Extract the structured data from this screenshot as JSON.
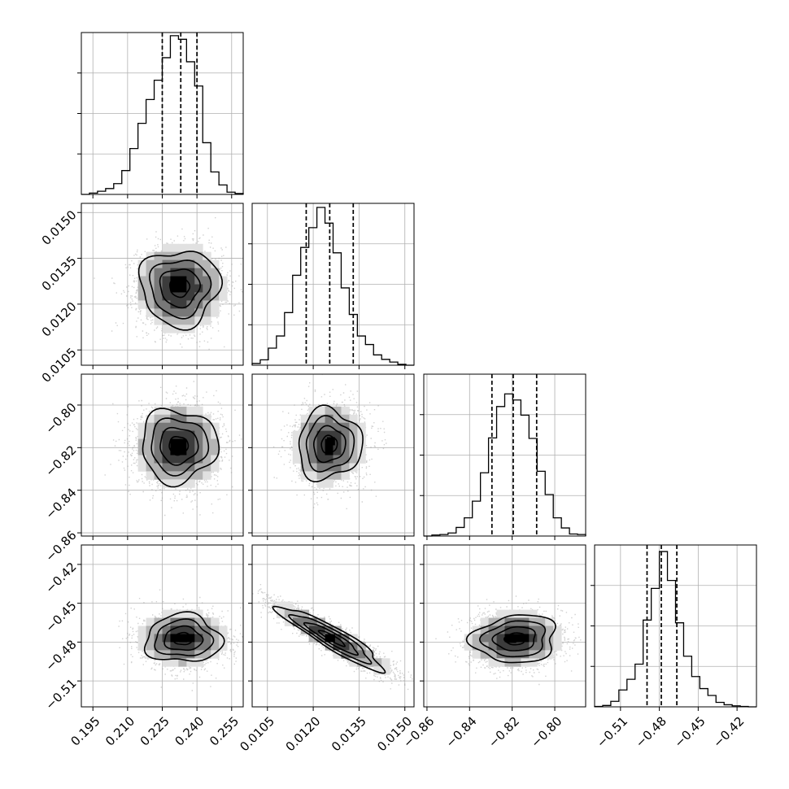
{
  "chart_data": {
    "type": "corner",
    "title": "",
    "grid": true,
    "parameters": [
      {
        "range": [
          0.19,
          0.26
        ],
        "ticks": [
          0.195,
          0.21,
          0.225,
          0.24,
          0.255
        ],
        "tick_labels": [
          "0.195",
          "0.210",
          "0.225",
          "0.240",
          "0.255"
        ],
        "quantiles": [
          0.225,
          0.233,
          0.24
        ],
        "hist_max": 0.036,
        "hist_edges": [
          0.19,
          0.1935,
          0.197,
          0.2005,
          0.204,
          0.2075,
          0.211,
          0.2145,
          0.218,
          0.2215,
          0.225,
          0.2285,
          0.232,
          0.2355,
          0.239,
          0.2425,
          0.246,
          0.2495,
          0.253,
          0.2565,
          0.26
        ],
        "hist_counts": [
          0.0,
          0.0003,
          0.0007,
          0.0013,
          0.0024,
          0.0053,
          0.0102,
          0.0158,
          0.0211,
          0.0254,
          0.0304,
          0.0353,
          0.0345,
          0.0295,
          0.0241,
          0.0115,
          0.005,
          0.0021,
          0.0005,
          0.0002
        ]
      },
      {
        "range": [
          0.01,
          0.0153
        ],
        "ticks": [
          0.0105,
          0.012,
          0.0135,
          0.015
        ],
        "tick_labels": [
          "0.0105",
          "0.0120",
          "0.0135",
          "0.0150"
        ],
        "quantiles": [
          0.01177,
          0.01254,
          0.01331
        ],
        "hist_max": 0.036,
        "hist_edges": [
          0.01,
          0.010265,
          0.01053,
          0.010795,
          0.01106,
          0.011325,
          0.01159,
          0.011855,
          0.01212,
          0.012385,
          0.01265,
          0.012915,
          0.01318,
          0.013445,
          0.01371,
          0.013975,
          0.01424,
          0.014505,
          0.01477,
          0.015035,
          0.0153
        ],
        "hist_counts": [
          0.0004,
          0.0012,
          0.0038,
          0.0065,
          0.0117,
          0.02,
          0.0262,
          0.0306,
          0.0351,
          0.0316,
          0.025,
          0.0172,
          0.0113,
          0.0065,
          0.0046,
          0.0023,
          0.0013,
          0.0007,
          0.0002,
          0.0
        ]
      },
      {
        "range": [
          -0.8615,
          -0.7855
        ],
        "ticks": [
          -0.86,
          -0.84,
          -0.82,
          -0.8
        ],
        "tick_labels": [
          "−0.86",
          "−0.84",
          "−0.82",
          "−0.80"
        ],
        "quantiles": [
          -0.8295,
          -0.8195,
          -0.8085
        ],
        "hist_max": 0.032,
        "hist_edges": [
          -0.8615,
          -0.8577,
          -0.8539,
          -0.8501,
          -0.8463,
          -0.8425,
          -0.8387,
          -0.8349,
          -0.8311,
          -0.8273,
          -0.8235,
          -0.8197,
          -0.8159,
          -0.8121,
          -0.8083,
          -0.8045,
          -0.8007,
          -0.7969,
          -0.7931,
          -0.7893,
          -0.7855
        ],
        "hist_counts": [
          0.0,
          0.0002,
          0.0003,
          0.0006,
          0.0017,
          0.0036,
          0.0069,
          0.0125,
          0.0194,
          0.0256,
          0.0281,
          0.0269,
          0.0239,
          0.0193,
          0.0128,
          0.0082,
          0.0036,
          0.0016,
          0.0004,
          0.0003
        ]
      },
      {
        "range": [
          -0.53,
          -0.405
        ],
        "ticks": [
          -0.51,
          -0.48,
          -0.45,
          -0.42
        ],
        "tick_labels": [
          "−0.51",
          "−0.48",
          "−0.45",
          "−0.42"
        ],
        "quantiles": [
          -0.4895,
          -0.4785,
          -0.4665
        ],
        "hist_max": 0.047,
        "hist_edges": [
          -0.53,
          -0.52375,
          -0.5175,
          -0.51125,
          -0.505,
          -0.49875,
          -0.4925,
          -0.48625,
          -0.48,
          -0.47375,
          -0.4675,
          -0.46125,
          -0.455,
          -0.44875,
          -0.4425,
          -0.43625,
          -0.43,
          -0.42375,
          -0.4175,
          -0.41125,
          -0.405
        ],
        "hist_counts": [
          0.0001,
          0.0004,
          0.0016,
          0.0049,
          0.008,
          0.0124,
          0.0252,
          0.0344,
          0.0451,
          0.0367,
          0.0244,
          0.0147,
          0.0088,
          0.0053,
          0.0033,
          0.0013,
          0.0006,
          0.0003,
          0.0001,
          0.0
        ]
      }
    ],
    "pairs": [
      {
        "x": 0,
        "y": 1,
        "mean": [
          0.2325,
          0.01255
        ],
        "sigma": [
          0.0085,
          0.00062
        ],
        "rho": 0.0,
        "peak": [
          0.2325,
          0.01262
        ]
      },
      {
        "x": 0,
        "y": 2,
        "mean": [
          0.232,
          -0.819
        ],
        "sigma": [
          0.0082,
          0.0085
        ],
        "rho": 0.0,
        "peak": [
          0.232,
          -0.819
        ]
      },
      {
        "x": 1,
        "y": 2,
        "mean": [
          0.01252,
          -0.8185
        ],
        "sigma": [
          0.00052,
          0.0082
        ],
        "rho": 0.05,
        "peak": [
          0.01258,
          -0.817
        ]
      },
      {
        "x": 0,
        "y": 3,
        "mean": [
          0.234,
          -0.4775
        ],
        "sigma": [
          0.0082,
          0.0092
        ],
        "rho": 0.0,
        "peak": [
          0.234,
          -0.477
        ]
      },
      {
        "x": 1,
        "y": 3,
        "mean": [
          0.01262,
          -0.477
        ],
        "sigma": [
          0.00085,
          0.0122
        ],
        "rho": -0.92,
        "peak": [
          0.01258,
          -0.477
        ]
      },
      {
        "x": 2,
        "y": 3,
        "mean": [
          -0.8185,
          -0.4775
        ],
        "sigma": [
          0.0098,
          0.0092
        ],
        "rho": 0.1,
        "peak": [
          -0.82,
          -0.4775
        ]
      }
    ],
    "contour_levels_sigma": [
      0.5,
      1.0,
      1.5,
      2.0
    ]
  }
}
